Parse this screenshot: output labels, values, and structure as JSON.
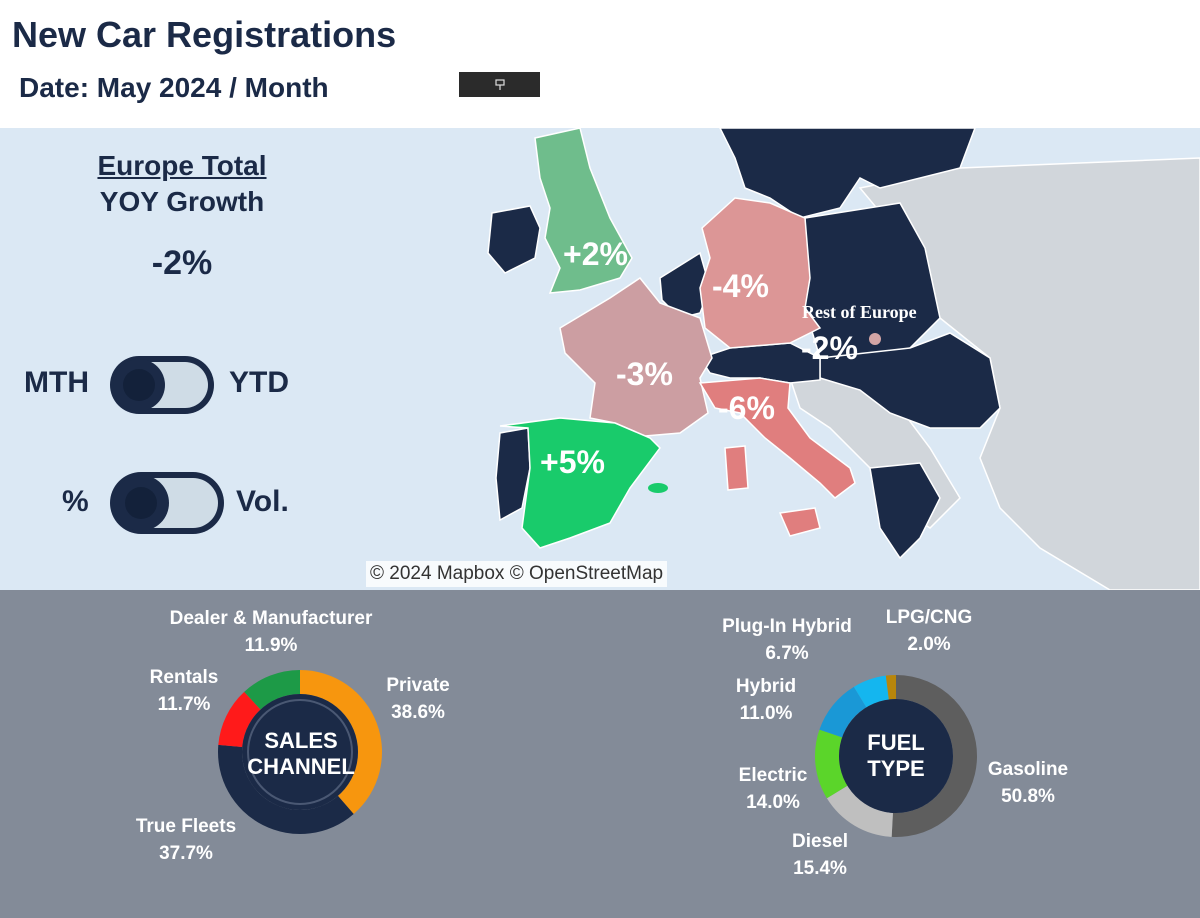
{
  "header": {
    "title": "New Car Registrations",
    "date": "Date: May 2024 / Month",
    "button_icon": "pin-icon"
  },
  "kpi": {
    "heading": "Europe Total",
    "subheading": "YOY Growth",
    "value": "-2%"
  },
  "toggles": [
    {
      "left": "MTH",
      "right": "YTD",
      "selected": "MTH"
    },
    {
      "left": "%",
      "right": "Vol.",
      "selected": "%"
    }
  ],
  "map": {
    "regions": [
      {
        "name": "UK",
        "label": "+2%",
        "color": "#6fbd8c"
      },
      {
        "name": "Germany",
        "label": "-4%",
        "color": "#dc9696"
      },
      {
        "name": "France",
        "label": "-3%",
        "color": "#cc9ea2"
      },
      {
        "name": "Italy",
        "label": "-6%",
        "color": "#e07e7e"
      },
      {
        "name": "Spain",
        "label": "+5%",
        "color": "#19cb6b"
      },
      {
        "name": "Rest of Europe",
        "label": "-2%",
        "title": "Rest of Europe",
        "color": "#1b2a47"
      }
    ],
    "attribution": "© 2024 Mapbox  © OpenStreetMap",
    "colors": {
      "sea": "#dbe8f4",
      "other": "#d1d6db",
      "rest": "#1b2a47"
    }
  },
  "sales_channel": {
    "center_label_1": "SALES",
    "center_label_2": "CHANNEL",
    "labels": [
      {
        "name": "Dealer & Manufacturer",
        "value": "11.9%"
      },
      {
        "name": "Private",
        "value": "38.6%"
      },
      {
        "name": "Rentals",
        "value": "11.7%"
      },
      {
        "name": "True Fleets",
        "value": "37.7%"
      }
    ]
  },
  "fuel_type": {
    "center_label_1": "FUEL",
    "center_label_2": "TYPE",
    "labels": [
      {
        "name": "Plug-In Hybrid",
        "value": "6.7%"
      },
      {
        "name": "LPG/CNG",
        "value": "2.0%"
      },
      {
        "name": "Hybrid",
        "value": "11.0%"
      },
      {
        "name": "Electric",
        "value": "14.0%"
      },
      {
        "name": "Gasoline",
        "value": "50.8%"
      },
      {
        "name": "Diesel",
        "value": "15.4%"
      }
    ]
  },
  "chart_data": [
    {
      "type": "pie",
      "title": "SALES CHANNEL",
      "categories": [
        "Private",
        "True Fleets",
        "Rentals",
        "Dealer & Manufacturer"
      ],
      "values": [
        38.6,
        37.7,
        11.7,
        11.9
      ],
      "colors": [
        "#f7960e",
        "#1b2a47",
        "#ff1a1a",
        "#1d9a47"
      ]
    },
    {
      "type": "pie",
      "title": "FUEL TYPE",
      "categories": [
        "Gasoline",
        "Diesel",
        "Electric",
        "Hybrid",
        "Plug-In Hybrid",
        "LPG/CNG"
      ],
      "values": [
        50.8,
        15.4,
        14.0,
        11.0,
        6.7,
        2.0
      ],
      "colors": [
        "#5e5e5e",
        "#bfbfbf",
        "#5bd52a",
        "#1a98d6",
        "#14b6ef",
        "#b8860b"
      ]
    }
  ]
}
